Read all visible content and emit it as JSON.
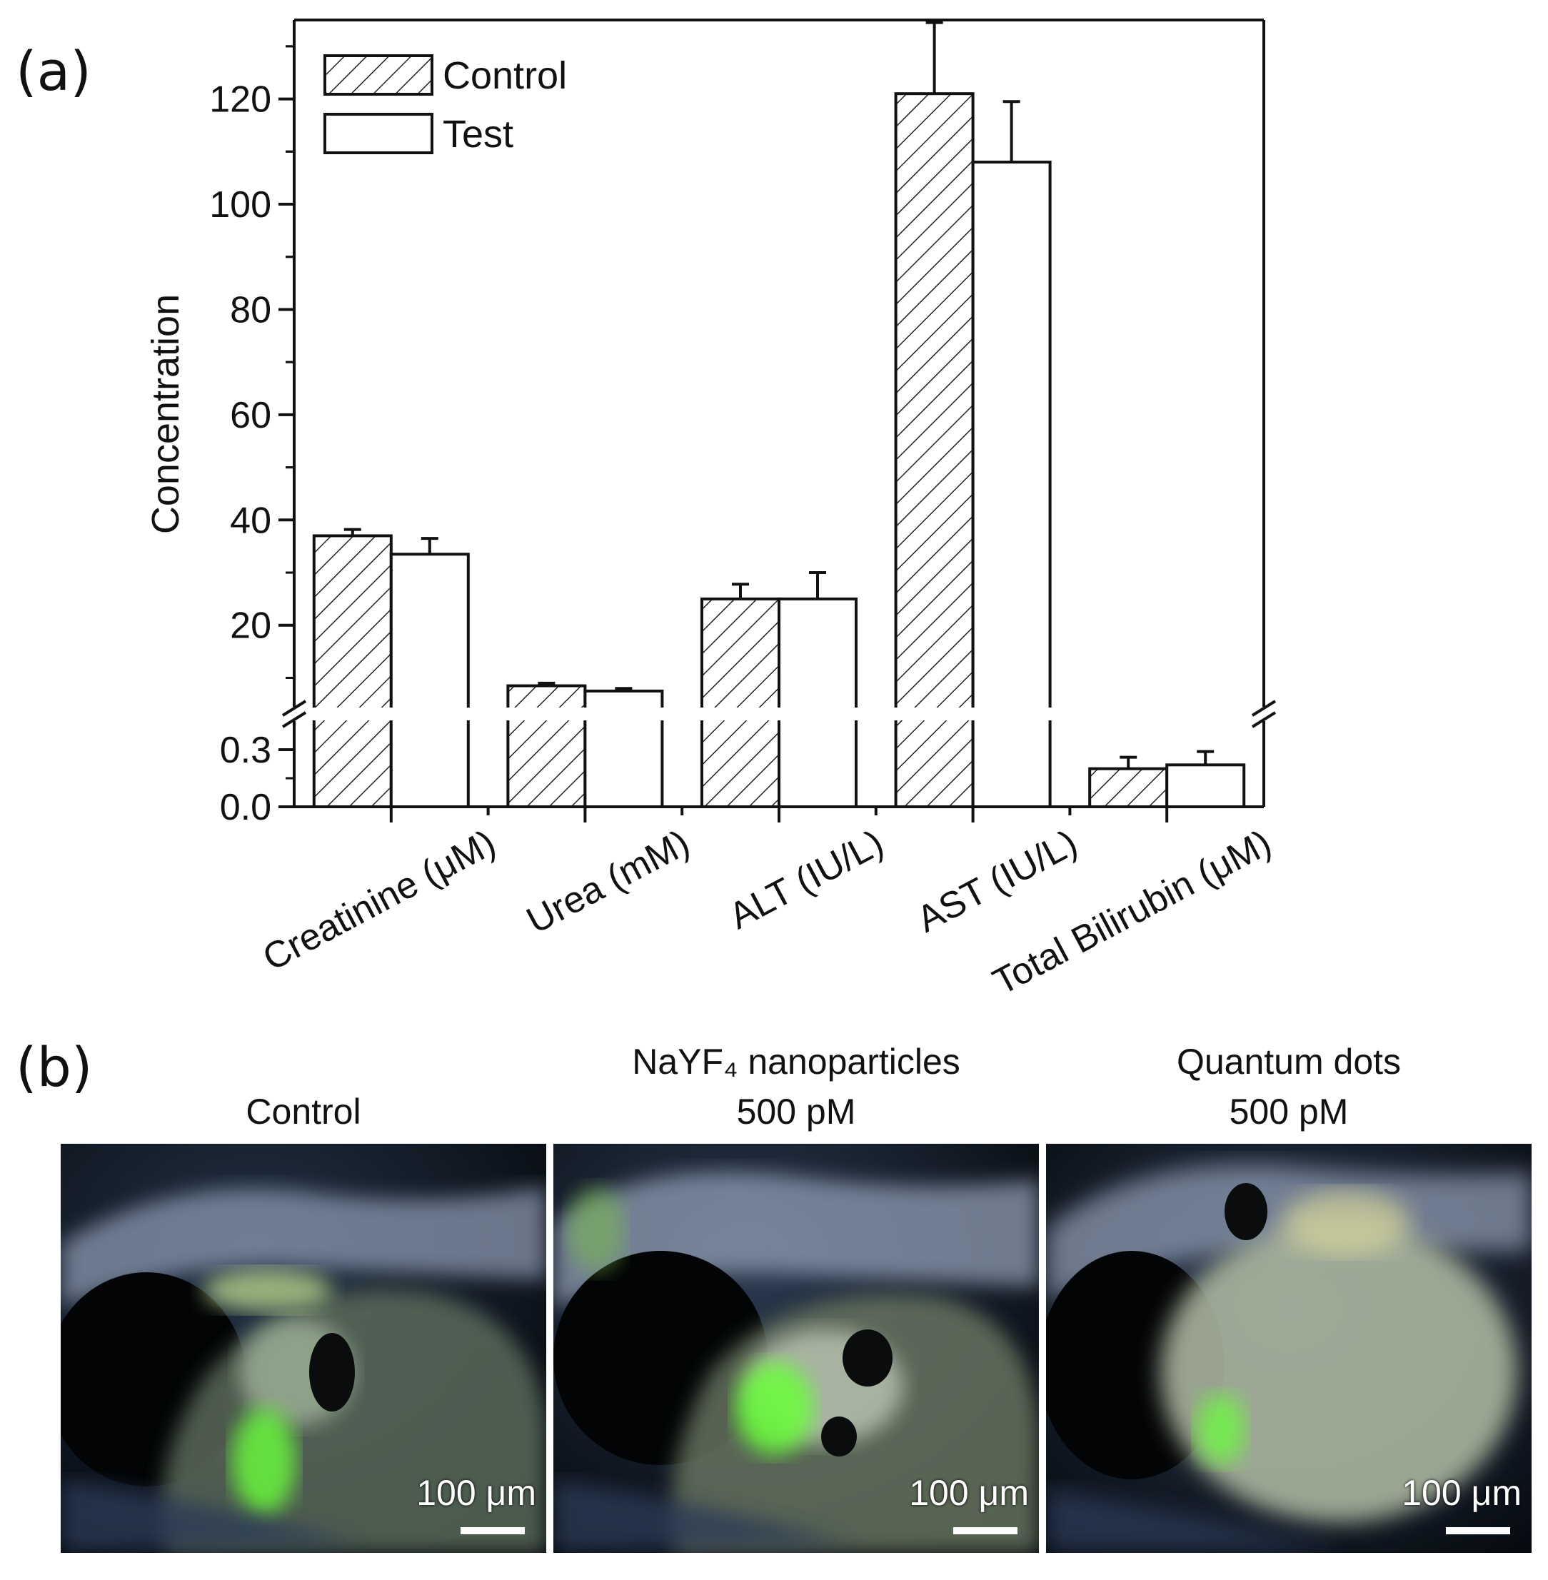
{
  "panel_a_label": "(a)",
  "panel_b_label": "(b)",
  "chart_data": {
    "type": "bar",
    "ylabel": "Concentration",
    "categories": [
      "Creatinine (μM)",
      "Urea (mM)",
      "ALT (IU/L)",
      "AST (IU/L)",
      "Total Bilirubin (μM)"
    ],
    "series": [
      {
        "name": "Control",
        "pattern": "hatched",
        "values": [
          37,
          8.5,
          25,
          121,
          0.2
        ],
        "errors": [
          1.2,
          0.5,
          2.8,
          13.5,
          0.06
        ]
      },
      {
        "name": "Test",
        "pattern": "open",
        "values": [
          33.5,
          7.5,
          25,
          108,
          0.22
        ],
        "errors": [
          3.0,
          0.5,
          5.0,
          11.5,
          0.07
        ]
      }
    ],
    "upper_axis": {
      "range": [
        4.5,
        135
      ],
      "ticks": [
        20,
        40,
        60,
        80,
        100,
        120
      ],
      "tick_labels": [
        "20",
        "40",
        "60",
        "80",
        "100",
        "120"
      ]
    },
    "lower_axis": {
      "range": [
        0,
        0.45
      ],
      "ticks": [
        0.0,
        0.3
      ],
      "tick_labels": [
        "0.0",
        "0.3"
      ]
    },
    "axis_break": true,
    "legend_position": "top-left",
    "grid": false
  },
  "panel_b": {
    "images": [
      {
        "title_line1": "Control",
        "title_line2": "",
        "scale_label": "100 μm"
      },
      {
        "title_line1": "NaYF₄ nanoparticles",
        "title_line2": "500 pM",
        "scale_label": "100 μm"
      },
      {
        "title_line1": "Quantum dots",
        "title_line2": "500 pM",
        "scale_label": "100 μm"
      }
    ]
  }
}
